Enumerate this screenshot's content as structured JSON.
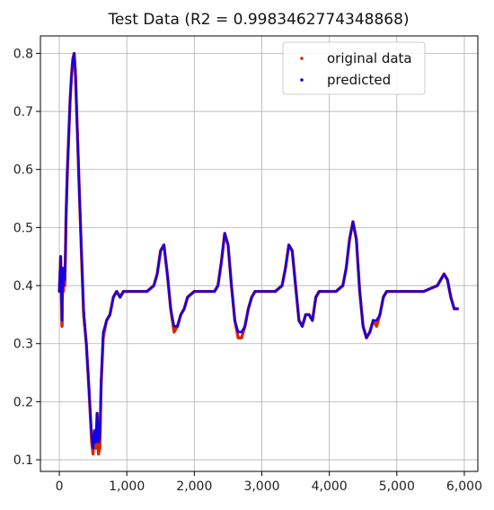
{
  "chart_data": {
    "type": "scatter",
    "title": "Test Data (R2 = 0.9983462774348868)",
    "xlabel": "",
    "ylabel": "",
    "xlim": [
      -280,
      6200
    ],
    "ylim": [
      0.08,
      0.83
    ],
    "x_ticks": [
      0,
      1000,
      2000,
      3000,
      4000,
      5000,
      6000
    ],
    "x_tick_labels": [
      "0",
      "1,000",
      "2,000",
      "3,000",
      "4,000",
      "5,000",
      "6,000"
    ],
    "y_ticks": [
      0.1,
      0.2,
      0.3,
      0.4,
      0.5,
      0.6,
      0.7,
      0.8
    ],
    "y_tick_labels": [
      "0.1",
      "0.2",
      "0.3",
      "0.4",
      "0.5",
      "0.6",
      "0.7",
      "0.8"
    ],
    "grid": true,
    "legend_position": "top-right",
    "series": [
      {
        "name": "original data",
        "color": "#d62800",
        "x": [
          0,
          20,
          40,
          50,
          60,
          70,
          80,
          90,
          100,
          120,
          140,
          160,
          180,
          200,
          220,
          240,
          260,
          280,
          300,
          330,
          360,
          400,
          440,
          480,
          500,
          520,
          540,
          560,
          580,
          600,
          620,
          650,
          700,
          750,
          800,
          850,
          900,
          950,
          1000,
          1100,
          1200,
          1300,
          1400,
          1450,
          1500,
          1550,
          1600,
          1650,
          1700,
          1750,
          1800,
          1850,
          1900,
          2000,
          2100,
          2200,
          2300,
          2350,
          2400,
          2450,
          2500,
          2550,
          2600,
          2650,
          2700,
          2750,
          2800,
          2850,
          2900,
          3000,
          3100,
          3200,
          3300,
          3350,
          3400,
          3450,
          3500,
          3550,
          3600,
          3650,
          3700,
          3750,
          3800,
          3850,
          3900,
          4000,
          4100,
          4200,
          4250,
          4300,
          4350,
          4400,
          4450,
          4500,
          4550,
          4600,
          4650,
          4700,
          4750,
          4800,
          4850,
          4900,
          5000,
          5200,
          5400,
          5600,
          5650,
          5700,
          5750,
          5800,
          5850,
          5900
        ],
        "y": [
          0.39,
          0.45,
          0.33,
          0.43,
          0.39,
          0.43,
          0.4,
          0.45,
          0.52,
          0.6,
          0.66,
          0.72,
          0.76,
          0.79,
          0.8,
          0.76,
          0.69,
          0.62,
          0.55,
          0.45,
          0.35,
          0.3,
          0.22,
          0.13,
          0.11,
          0.15,
          0.12,
          0.18,
          0.11,
          0.12,
          0.23,
          0.31,
          0.34,
          0.35,
          0.38,
          0.39,
          0.38,
          0.39,
          0.39,
          0.39,
          0.39,
          0.39,
          0.4,
          0.42,
          0.46,
          0.47,
          0.42,
          0.36,
          0.32,
          0.33,
          0.35,
          0.36,
          0.38,
          0.39,
          0.39,
          0.39,
          0.39,
          0.4,
          0.44,
          0.49,
          0.47,
          0.4,
          0.34,
          0.31,
          0.31,
          0.33,
          0.36,
          0.38,
          0.39,
          0.39,
          0.39,
          0.39,
          0.4,
          0.43,
          0.47,
          0.46,
          0.4,
          0.34,
          0.33,
          0.35,
          0.35,
          0.34,
          0.38,
          0.39,
          0.39,
          0.39,
          0.39,
          0.4,
          0.43,
          0.48,
          0.51,
          0.48,
          0.39,
          0.33,
          0.31,
          0.32,
          0.34,
          0.33,
          0.35,
          0.38,
          0.39,
          0.39,
          0.39,
          0.39,
          0.39,
          0.4,
          0.41,
          0.42,
          0.41,
          0.38,
          0.36,
          0.36
        ]
      },
      {
        "name": "predicted",
        "color": "#1400e6",
        "x": [
          0,
          20,
          40,
          50,
          60,
          70,
          80,
          90,
          100,
          120,
          140,
          160,
          180,
          200,
          220,
          240,
          260,
          280,
          300,
          330,
          360,
          400,
          440,
          480,
          500,
          520,
          540,
          560,
          580,
          600,
          620,
          650,
          700,
          750,
          800,
          850,
          900,
          950,
          1000,
          1100,
          1200,
          1300,
          1400,
          1450,
          1500,
          1550,
          1600,
          1650,
          1700,
          1750,
          1800,
          1850,
          1900,
          2000,
          2100,
          2200,
          2300,
          2350,
          2400,
          2450,
          2500,
          2550,
          2600,
          2650,
          2700,
          2750,
          2800,
          2850,
          2900,
          3000,
          3100,
          3200,
          3300,
          3350,
          3400,
          3450,
          3500,
          3550,
          3600,
          3650,
          3700,
          3750,
          3800,
          3850,
          3900,
          4000,
          4100,
          4200,
          4250,
          4300,
          4350,
          4400,
          4450,
          4500,
          4550,
          4600,
          4650,
          4700,
          4750,
          4800,
          4850,
          4900,
          5000,
          5200,
          5400,
          5600,
          5650,
          5700,
          5750,
          5800,
          5850,
          5900
        ],
        "y": [
          0.39,
          0.45,
          0.34,
          0.43,
          0.4,
          0.43,
          0.41,
          0.45,
          0.52,
          0.6,
          0.66,
          0.72,
          0.76,
          0.79,
          0.8,
          0.77,
          0.69,
          0.62,
          0.55,
          0.45,
          0.36,
          0.3,
          0.22,
          0.14,
          0.12,
          0.15,
          0.13,
          0.18,
          0.13,
          0.14,
          0.24,
          0.32,
          0.34,
          0.35,
          0.38,
          0.39,
          0.38,
          0.39,
          0.39,
          0.39,
          0.39,
          0.39,
          0.4,
          0.42,
          0.46,
          0.47,
          0.42,
          0.36,
          0.33,
          0.33,
          0.35,
          0.36,
          0.38,
          0.39,
          0.39,
          0.39,
          0.39,
          0.4,
          0.44,
          0.49,
          0.47,
          0.4,
          0.34,
          0.32,
          0.32,
          0.33,
          0.36,
          0.38,
          0.39,
          0.39,
          0.39,
          0.39,
          0.4,
          0.43,
          0.47,
          0.46,
          0.4,
          0.34,
          0.33,
          0.35,
          0.35,
          0.34,
          0.38,
          0.39,
          0.39,
          0.39,
          0.39,
          0.4,
          0.43,
          0.48,
          0.51,
          0.48,
          0.39,
          0.33,
          0.31,
          0.32,
          0.34,
          0.34,
          0.35,
          0.38,
          0.39,
          0.39,
          0.39,
          0.39,
          0.39,
          0.4,
          0.41,
          0.42,
          0.41,
          0.38,
          0.36,
          0.36
        ]
      }
    ]
  }
}
